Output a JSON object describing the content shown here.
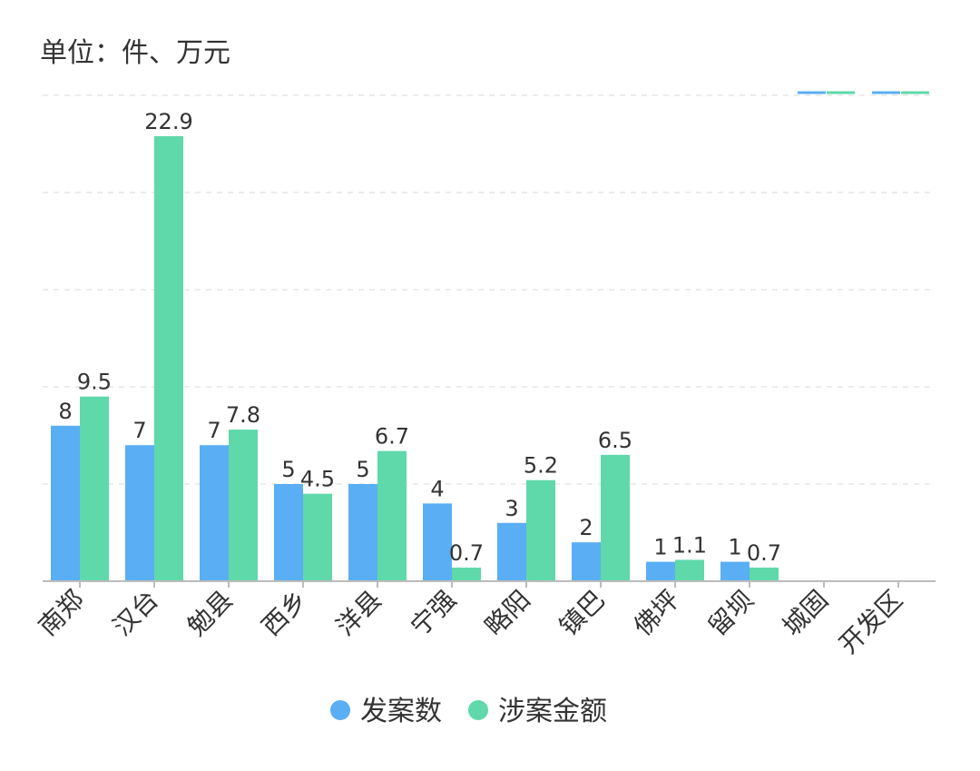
{
  "chart_data": {
    "type": "bar",
    "title": "单位：件、万元",
    "categories": [
      "南郑",
      "汉台",
      "勉县",
      "西乡",
      "洋县",
      "宁强",
      "略阳",
      "镇巴",
      "佛坪",
      "留坝",
      "城固",
      "开发区"
    ],
    "series": [
      {
        "name": "发案数",
        "color": "#5aaef4",
        "values": [
          8,
          7,
          7,
          5,
          5,
          4,
          3,
          2,
          1,
          1,
          null,
          null
        ]
      },
      {
        "name": "涉案金额",
        "color": "#5fd8aa",
        "values": [
          9.5,
          22.9,
          7.8,
          4.5,
          6.7,
          0.7,
          5.2,
          6.5,
          1.1,
          0.7,
          null,
          null
        ]
      }
    ],
    "ylim": [
      0,
      25
    ],
    "yticks": [
      0,
      5,
      10,
      15,
      20,
      25
    ],
    "grid": true,
    "legend": "bottom-center"
  }
}
